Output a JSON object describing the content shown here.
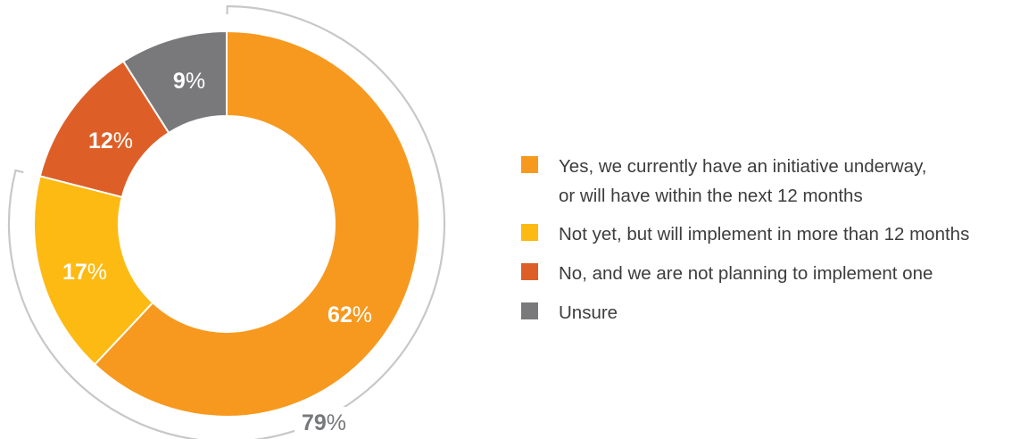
{
  "chart_data": {
    "type": "pie",
    "donut": true,
    "slices": [
      {
        "label": "Yes, we currently have an initiative underway,\nor will have within the next 12 months",
        "value": 62,
        "pct_text": "62",
        "color": "#F7991E"
      },
      {
        "label": "Not yet, but will implement in more than 12 months",
        "value": 17,
        "pct_text": "17",
        "color": "#FDBA13"
      },
      {
        "label": "No, and we are not planning to implement one",
        "value": 12,
        "pct_text": "12",
        "color": "#DD5F27"
      },
      {
        "label": "Unsure",
        "value": 9,
        "pct_text": "9",
        "color": "#79797B"
      }
    ],
    "percent_sign": "%",
    "group_bracket": {
      "label_value": "79",
      "covers": [
        "Yes, we currently have an initiative underway,\nor will have within the next 12 months",
        "Not yet, but will implement in more than 12 months"
      ],
      "color": "#C8C8C8"
    },
    "legend_position": "right"
  }
}
